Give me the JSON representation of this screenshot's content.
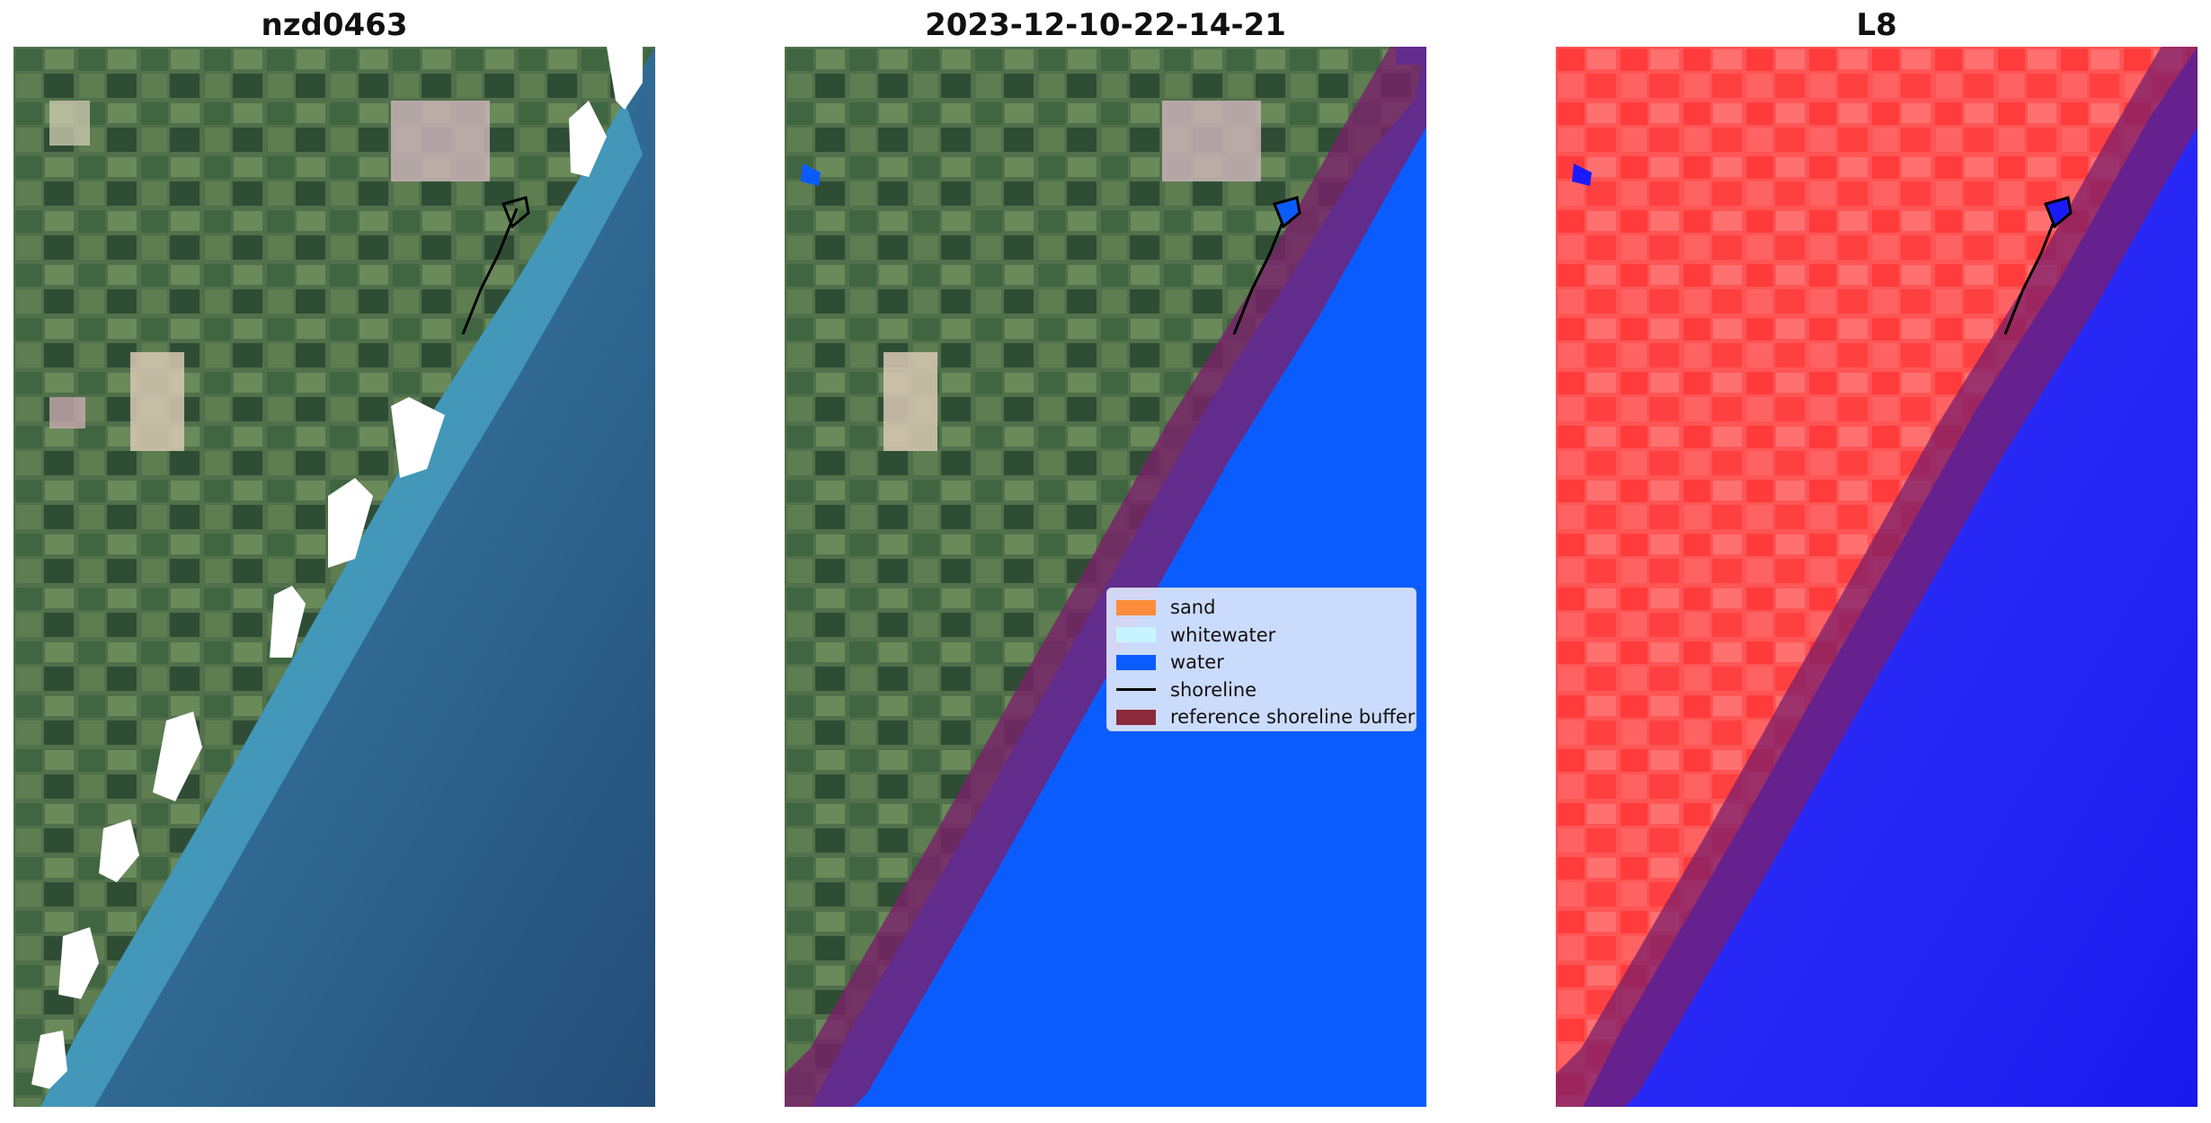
{
  "panels": [
    {
      "title": "nzd0463"
    },
    {
      "title": "2023-12-10-22-14-21"
    },
    {
      "title": "L8"
    }
  ],
  "legend": {
    "items": [
      {
        "label": "sand",
        "color": "#ff8c3a",
        "kind": "patch"
      },
      {
        "label": "whitewater",
        "color": "#c8f4ff",
        "kind": "patch"
      },
      {
        "label": "water",
        "color": "#0a5cff",
        "kind": "patch"
      },
      {
        "label": "shoreline",
        "color": "#000000",
        "kind": "line"
      },
      {
        "label": "reference shoreline buffer",
        "color": "#8b2a3a",
        "kind": "patch"
      }
    ]
  },
  "colors": {
    "land_rgb": "#4f6f4a",
    "sea_rgb": "#2f6a95",
    "nearshore_rgb": "#4aa6c4",
    "classified_water": "#0a5cff",
    "buffer": "#7b1f6b",
    "index_land": "#ff4a4a",
    "index_water": "#1a1aff"
  }
}
